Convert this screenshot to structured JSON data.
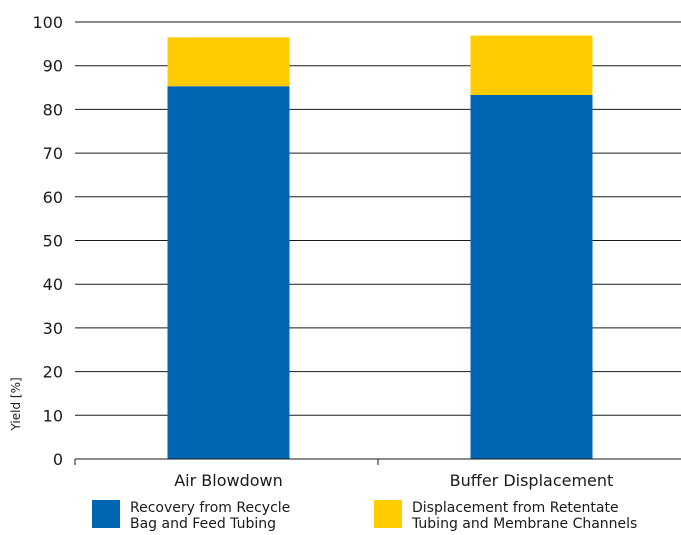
{
  "chart_data": {
    "type": "bar",
    "stacked": true,
    "categories": [
      "Air Blowdown",
      "Buffer Displacement"
    ],
    "series": [
      {
        "name": "Recovery from Recycle\nBag and Feed Tubing",
        "color": "#0066b3",
        "values": [
          85.3,
          83.3
        ]
      },
      {
        "name": "Displacement from Retentate\nTubing and Membrane Channels",
        "color": "#ffcc00",
        "values": [
          11.2,
          13.6
        ]
      }
    ],
    "ylabel": "Yield [%]",
    "ylim": [
      0,
      100
    ],
    "yticks": [
      0,
      10,
      20,
      30,
      40,
      50,
      60,
      70,
      80,
      90,
      100
    ],
    "grid": true,
    "legend_position": "bottom"
  }
}
